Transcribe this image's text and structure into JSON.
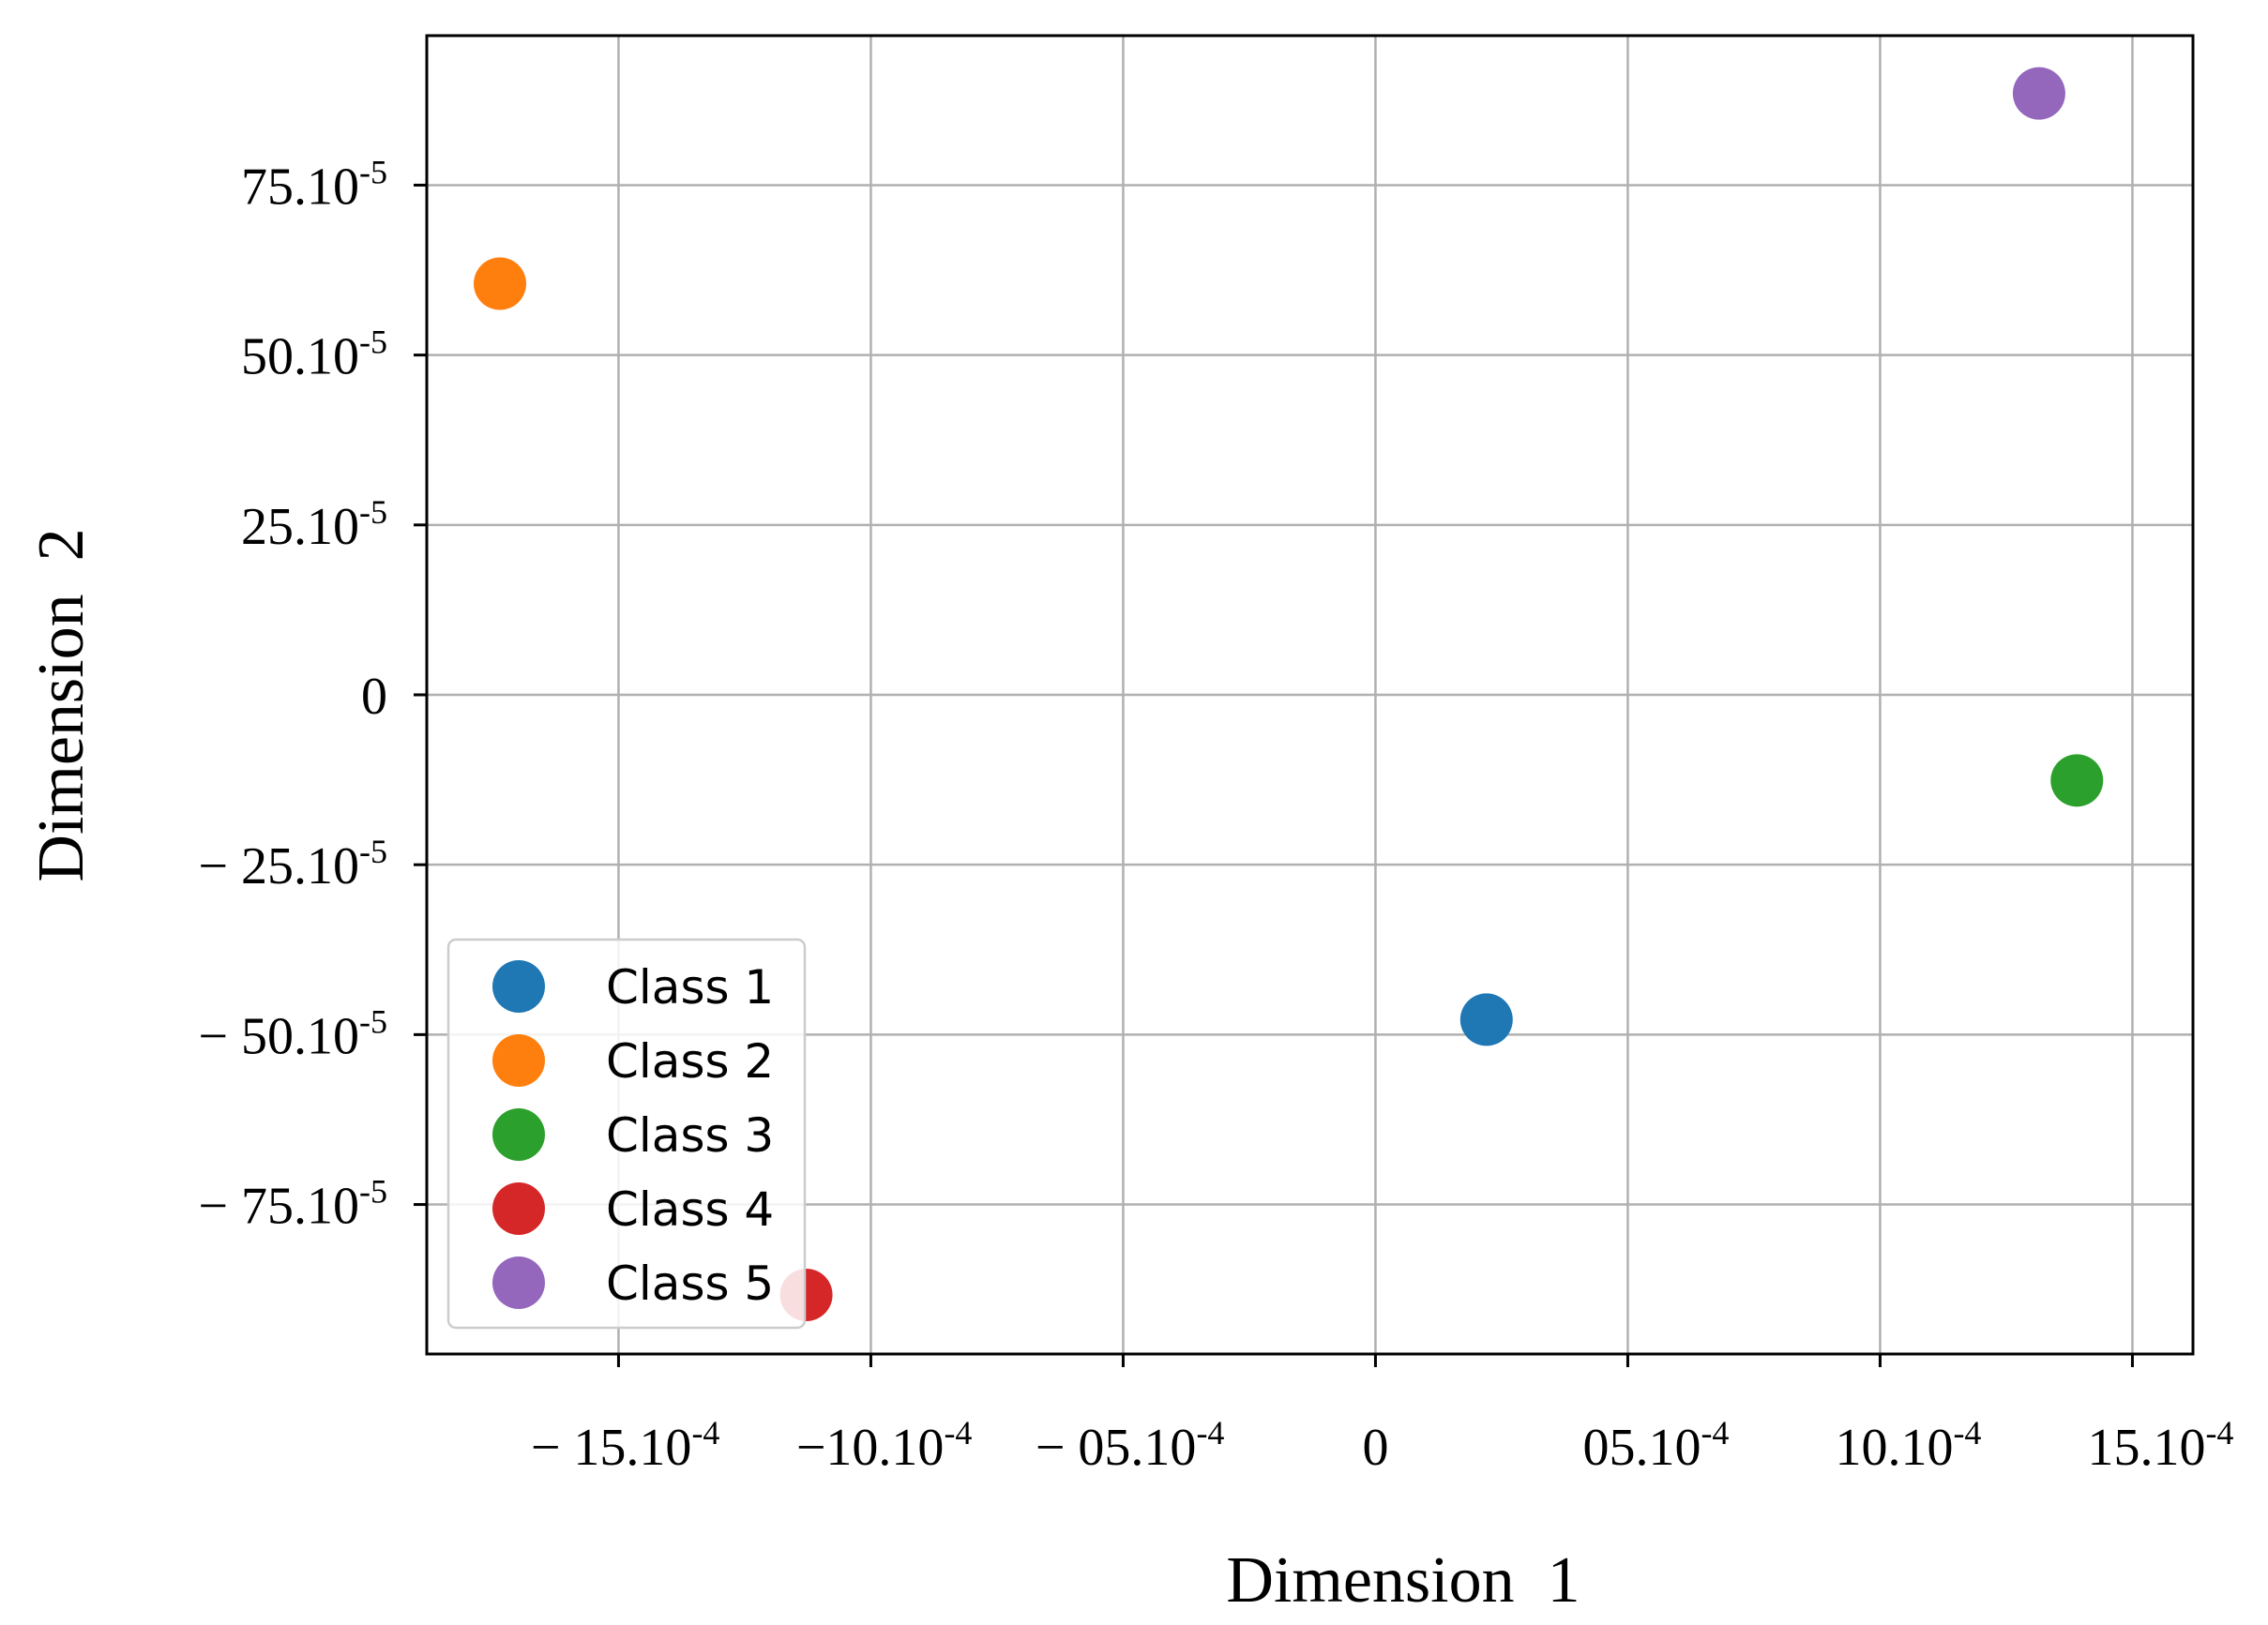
{
  "chart_data": {
    "type": "scatter",
    "title": "",
    "xlabel": "Dimension  1",
    "ylabel": "Dimension  2",
    "xlim": [
      -0.00188,
      0.00162
    ],
    "ylim": [
      -0.00097,
      0.00097
    ],
    "x_ticks": [
      {
        "value": -0.0015,
        "label": "− 15.10",
        "exp": "-4"
      },
      {
        "value": -0.001,
        "label": "−10.10",
        "exp": "-4"
      },
      {
        "value": -0.0005,
        "label": "− 05.10",
        "exp": "-4"
      },
      {
        "value": 0,
        "label": "0",
        "exp": ""
      },
      {
        "value": 0.0005,
        "label": "05.10",
        "exp": "-4"
      },
      {
        "value": 0.001,
        "label": "10.10",
        "exp": "-4"
      },
      {
        "value": 0.0015,
        "label": "15.10",
        "exp": "-4"
      }
    ],
    "y_ticks": [
      {
        "value": 0.00075,
        "label": "75.10",
        "exp": "-5"
      },
      {
        "value": 0.0005,
        "label": "50.10",
        "exp": "-5"
      },
      {
        "value": 0.00025,
        "label": "25.10",
        "exp": "-5"
      },
      {
        "value": 0,
        "label": "0",
        "exp": ""
      },
      {
        "value": -0.00025,
        "label": "− 25.10",
        "exp": "-5"
      },
      {
        "value": -0.0005,
        "label": "− 50.10",
        "exp": "-5"
      },
      {
        "value": -0.00075,
        "label": "− 75.10",
        "exp": "-5"
      }
    ],
    "grid": true,
    "legend_position": "lower-left",
    "series": [
      {
        "name": "Class 1",
        "color": "#1f77b4",
        "x": [
          0.00022
        ],
        "y": [
          -0.000478
        ]
      },
      {
        "name": "Class 2",
        "color": "#ff7f0e",
        "x": [
          -0.001735
        ],
        "y": [
          0.000605
        ]
      },
      {
        "name": "Class 3",
        "color": "#2ca02c",
        "x": [
          0.00139
        ],
        "y": [
          -0.000126
        ]
      },
      {
        "name": "Class 4",
        "color": "#d62728",
        "x": [
          -0.001128
        ],
        "y": [
          -0.000883
        ]
      },
      {
        "name": "Class 5",
        "color": "#9467bd",
        "x": [
          0.001315
        ],
        "y": [
          0.000885
        ]
      }
    ]
  }
}
